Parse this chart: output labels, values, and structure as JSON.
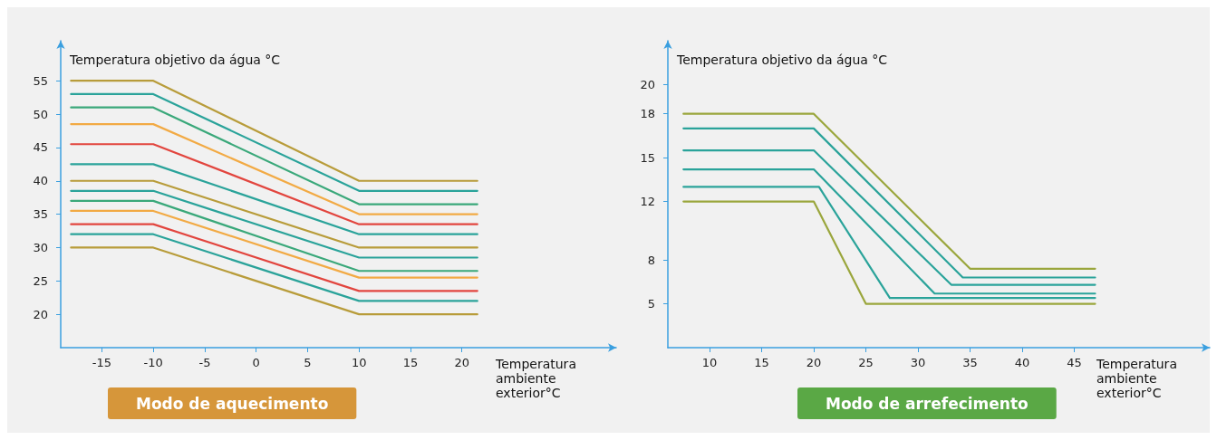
{
  "chart_data": [
    {
      "type": "line",
      "xlabel": "Temperatura ambiente exterior°C",
      "ylabel": "Temperatura objetivo da água °C",
      "xlim": [
        -19,
        35
      ],
      "xticks": [
        -15,
        -10,
        -5,
        0,
        5,
        10,
        15,
        20
      ],
      "ylim": [
        15,
        61
      ],
      "yticks": [
        20,
        25,
        30,
        35,
        40,
        45,
        50,
        55
      ],
      "grid": false,
      "marker": "none",
      "line_style": "solid",
      "annotations": [
        "Modo de aquecimento"
      ],
      "series": [
        {
          "color": "#b89c3a",
          "x": [
            -18,
            -10,
            10,
            21.5
          ],
          "values": [
            55,
            55,
            40,
            40
          ]
        },
        {
          "color": "#2aa39a",
          "x": [
            -18,
            -10,
            10,
            21.5
          ],
          "values": [
            53,
            53,
            38.5,
            38.5
          ]
        },
        {
          "color": "#3aa87a",
          "x": [
            -18,
            -10,
            10,
            21.5
          ],
          "values": [
            51,
            51,
            36.5,
            36.5
          ]
        },
        {
          "color": "#f2aa44",
          "x": [
            -18,
            -10,
            10,
            21.5
          ],
          "values": [
            48.5,
            48.5,
            35,
            35
          ]
        },
        {
          "color": "#e2453e",
          "x": [
            -18,
            -10,
            10,
            21.5
          ],
          "values": [
            45.5,
            45.5,
            33.5,
            33.5
          ]
        },
        {
          "color": "#2aa39a",
          "x": [
            -18,
            -10,
            10,
            21.5
          ],
          "values": [
            42.5,
            42.5,
            32,
            32
          ]
        },
        {
          "color": "#b89c3a",
          "x": [
            -18,
            -10,
            10,
            21.5
          ],
          "values": [
            40,
            40,
            30,
            30
          ]
        },
        {
          "color": "#2aa39a",
          "x": [
            -18,
            -10,
            10,
            21.5
          ],
          "values": [
            38.5,
            38.5,
            28.5,
            28.5
          ]
        },
        {
          "color": "#3aa87a",
          "x": [
            -18,
            -10,
            10,
            21.5
          ],
          "values": [
            37,
            37,
            26.5,
            26.5
          ]
        },
        {
          "color": "#f2aa44",
          "x": [
            -18,
            -10,
            10,
            21.5
          ],
          "values": [
            35.5,
            35.5,
            25.5,
            25.5
          ]
        },
        {
          "color": "#e2453e",
          "x": [
            -18,
            -10,
            10,
            21.5
          ],
          "values": [
            33.5,
            33.5,
            23.5,
            23.5
          ]
        },
        {
          "color": "#2aa39a",
          "x": [
            -18,
            -10,
            10,
            21.5
          ],
          "values": [
            32,
            32,
            22,
            22
          ]
        },
        {
          "color": "#b89c3a",
          "x": [
            -18,
            -10,
            10,
            21.5
          ],
          "values": [
            30,
            30,
            20,
            20
          ]
        }
      ]
    },
    {
      "type": "line",
      "xlabel": "Temperatura ambiente exterior°C",
      "ylabel": "Temperatura objetivo da água °C",
      "xlim": [
        6,
        58
      ],
      "xticks": [
        10,
        15,
        20,
        25,
        30,
        35,
        40,
        45
      ],
      "ylim": [
        2,
        23
      ],
      "yticks": [
        5,
        8,
        12,
        15,
        18,
        20
      ],
      "grid": false,
      "marker": "none",
      "line_style": "solid",
      "annotations": [
        "Modo de arrefecimento"
      ],
      "series": [
        {
          "color": "#9aa63c",
          "x": [
            7.5,
            20,
            35,
            47
          ],
          "values": [
            18,
            18,
            7.4,
            7.4
          ]
        },
        {
          "color": "#2aa39a",
          "x": [
            7.5,
            20,
            34.3,
            47
          ],
          "values": [
            17,
            17,
            6.8,
            6.8
          ]
        },
        {
          "color": "#2aa39a",
          "x": [
            7.5,
            20,
            33.2,
            47
          ],
          "values": [
            15.5,
            15.5,
            6.3,
            6.3
          ]
        },
        {
          "color": "#2aa39a",
          "x": [
            7.5,
            20,
            31.6,
            47
          ],
          "values": [
            14.2,
            14.2,
            5.7,
            5.7
          ]
        },
        {
          "color": "#2aa39a",
          "x": [
            7.5,
            20.5,
            27.3,
            47
          ],
          "values": [
            13,
            13,
            5.4,
            5.4
          ]
        },
        {
          "color": "#9aa63c",
          "x": [
            7.5,
            20,
            25,
            47
          ],
          "values": [
            12,
            12,
            5,
            5
          ]
        }
      ]
    }
  ]
}
